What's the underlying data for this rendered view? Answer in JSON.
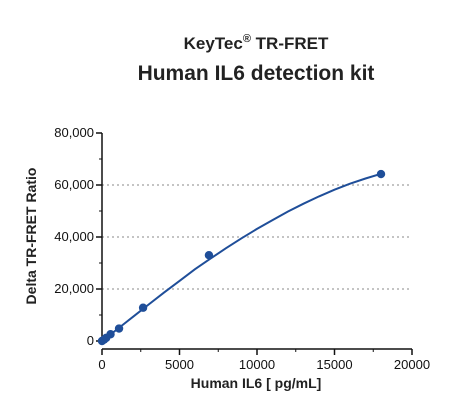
{
  "chart_data": {
    "type": "scatter",
    "title_prefix": "KeyTec",
    "title_superscript": "®",
    "title_suffix": " TR-FRET",
    "subtitle": "Human IL6 detection kit",
    "xlabel": "Human IL6 [ pg/mL]",
    "ylabel": "Delta TR-FRET Ratio",
    "xlim": [
      0,
      20000
    ],
    "ylim": [
      0,
      80000
    ],
    "x_ticks": [
      0,
      5000,
      10000,
      15000,
      20000
    ],
    "x_tick_labels": [
      "0",
      "5000",
      "10000",
      "15000",
      "20000"
    ],
    "y_ticks": [
      0,
      20000,
      40000,
      60000,
      80000
    ],
    "y_tick_labels": [
      "0",
      "20,000",
      "40,000",
      "60,000",
      "80,000"
    ],
    "grid": "horizontal dotted at 20,000 / 40,000 / 60,000",
    "color": "#1f4e99",
    "series": [
      {
        "x": [
          0,
          130,
          270,
          550,
          1100,
          2650,
          6900,
          18000
        ],
        "y": [
          0,
          500,
          1200,
          2600,
          4800,
          12800,
          33000,
          64200
        ]
      }
    ],
    "fit_curve": {
      "x": [
        0,
        500,
        1000,
        2000,
        3000,
        4000,
        5000,
        6000,
        7000,
        8000,
        9000,
        10000,
        11000,
        12000,
        13000,
        14000,
        15000,
        16000,
        17000,
        18000
      ],
      "y": [
        0,
        2300,
        4600,
        9300,
        14000,
        18600,
        23100,
        27600,
        31700,
        35700,
        39500,
        43100,
        46500,
        49800,
        52800,
        55600,
        58200,
        60500,
        62500,
        64300
      ]
    }
  }
}
